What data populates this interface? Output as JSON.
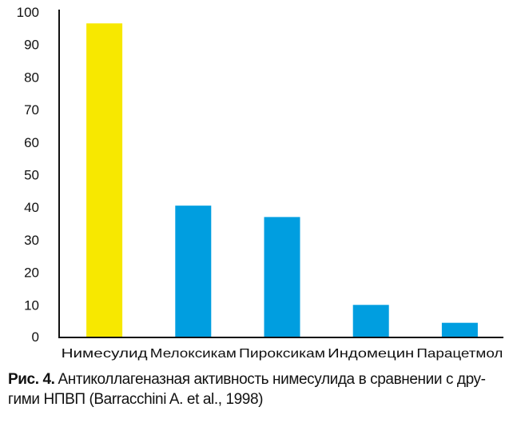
{
  "chart_data": {
    "type": "bar",
    "categories": [
      "Нимесулид",
      "Мелоксикам",
      "Пироксикам",
      "Индомецин",
      "Парацетмол"
    ],
    "values": [
      96.5,
      40.5,
      37,
      10,
      4.5
    ],
    "colors": [
      "#f7e800",
      "#009ee0",
      "#009ee0",
      "#009ee0",
      "#009ee0"
    ],
    "ylim": [
      0,
      100
    ],
    "yticks": [
      "0",
      "10",
      "20",
      "30",
      "40",
      "50",
      "60",
      "70",
      "80",
      "90",
      "100"
    ],
    "grid": false
  },
  "caption": {
    "label": "Рис. 4.",
    "line1": "Антиколлагеназная активность нимесулида в сравнении с дру-",
    "line2": "гими НПВП (Barracchini A. et al., 1998)"
  }
}
